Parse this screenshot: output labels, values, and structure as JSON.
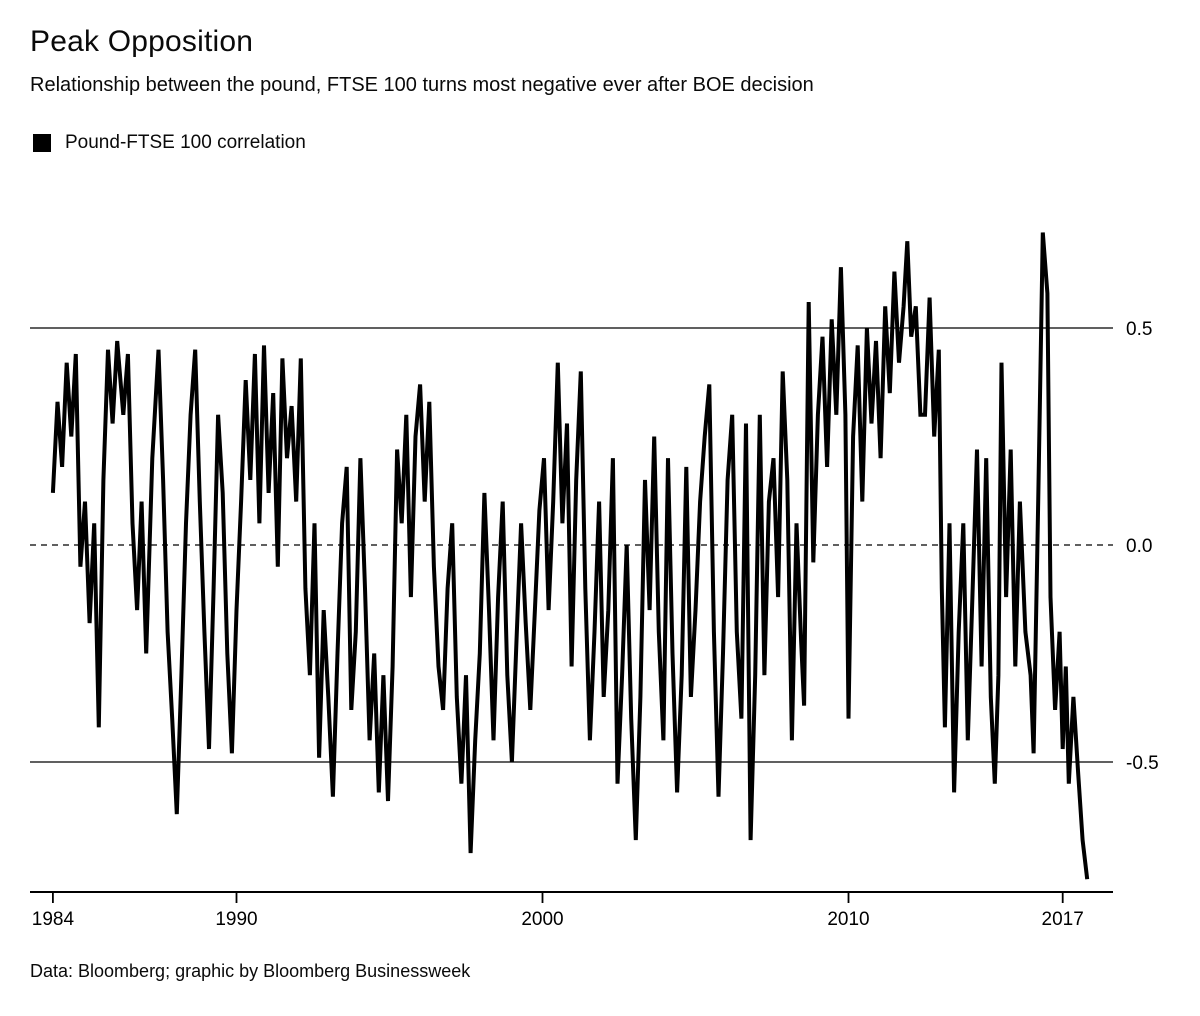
{
  "header": {
    "title": "Peak Opposition",
    "subtitle": "Relationship between the pound, FTSE 100 turns most negative ever after BOE decision"
  },
  "legend": {
    "items": [
      {
        "label": "Pound-FTSE 100 correlation",
        "swatch_color": "#000000"
      }
    ]
  },
  "footer": {
    "source": "Data: Bloomberg; graphic by Bloomberg Businessweek"
  },
  "chart_data": {
    "type": "line",
    "title": "Peak Opposition",
    "subtitle": "Relationship between the pound, FTSE 100 turns most negative ever after BOE decision",
    "xlabel": "",
    "ylabel": "",
    "xlim": [
      1983.3,
      2018.6
    ],
    "ylim": [
      -0.85,
      0.8
    ],
    "grid": "horizontal-only",
    "legend_position": "top-left",
    "line_color": "#000000",
    "axis_color": "#000000",
    "x_ticks": [
      {
        "label": "1984",
        "year": 1984
      },
      {
        "label": "1990",
        "year": 1990
      },
      {
        "label": "2000",
        "year": 2000
      },
      {
        "label": "2010",
        "year": 2010
      },
      {
        "label": "2017",
        "year": 2017
      }
    ],
    "y_ticks": [
      {
        "label": "0.5",
        "value": 0.5,
        "grid_style": "solid"
      },
      {
        "label": "0.0",
        "value": 0.0,
        "grid_style": "dashed"
      },
      {
        "label": "-0.5",
        "value": -0.5,
        "grid_style": "solid"
      }
    ],
    "series": [
      {
        "name": "Pound-FTSE 100 correlation",
        "color": "#000000",
        "points": [
          [
            1984.0,
            0.12
          ],
          [
            1984.15,
            0.33
          ],
          [
            1984.3,
            0.18
          ],
          [
            1984.45,
            0.42
          ],
          [
            1984.6,
            0.25
          ],
          [
            1984.75,
            0.44
          ],
          [
            1984.9,
            -0.05
          ],
          [
            1985.05,
            0.1
          ],
          [
            1985.2,
            -0.18
          ],
          [
            1985.35,
            0.05
          ],
          [
            1985.5,
            -0.42
          ],
          [
            1985.65,
            0.15
          ],
          [
            1985.8,
            0.45
          ],
          [
            1985.95,
            0.28
          ],
          [
            1986.1,
            0.47
          ],
          [
            1986.3,
            0.3
          ],
          [
            1986.45,
            0.44
          ],
          [
            1986.6,
            0.05
          ],
          [
            1986.75,
            -0.15
          ],
          [
            1986.9,
            0.1
          ],
          [
            1987.05,
            -0.25
          ],
          [
            1987.25,
            0.2
          ],
          [
            1987.45,
            0.45
          ],
          [
            1987.6,
            0.15
          ],
          [
            1987.75,
            -0.2
          ],
          [
            1987.9,
            -0.4
          ],
          [
            1988.05,
            -0.62
          ],
          [
            1988.2,
            -0.3
          ],
          [
            1988.35,
            0.05
          ],
          [
            1988.5,
            0.3
          ],
          [
            1988.65,
            0.45
          ],
          [
            1988.8,
            0.1
          ],
          [
            1988.95,
            -0.2
          ],
          [
            1989.1,
            -0.47
          ],
          [
            1989.25,
            -0.1
          ],
          [
            1989.4,
            0.3
          ],
          [
            1989.55,
            0.12
          ],
          [
            1989.7,
            -0.25
          ],
          [
            1989.85,
            -0.48
          ],
          [
            1990.0,
            -0.15
          ],
          [
            1990.15,
            0.1
          ],
          [
            1990.3,
            0.38
          ],
          [
            1990.45,
            0.15
          ],
          [
            1990.6,
            0.44
          ],
          [
            1990.75,
            0.05
          ],
          [
            1990.9,
            0.46
          ],
          [
            1991.05,
            0.12
          ],
          [
            1991.2,
            0.35
          ],
          [
            1991.35,
            -0.05
          ],
          [
            1991.5,
            0.43
          ],
          [
            1991.65,
            0.2
          ],
          [
            1991.8,
            0.32
          ],
          [
            1991.95,
            0.1
          ],
          [
            1992.1,
            0.43
          ],
          [
            1992.25,
            -0.1
          ],
          [
            1992.4,
            -0.3
          ],
          [
            1992.55,
            0.05
          ],
          [
            1992.7,
            -0.49
          ],
          [
            1992.85,
            -0.15
          ],
          [
            1993.0,
            -0.35
          ],
          [
            1993.15,
            -0.58
          ],
          [
            1993.3,
            -0.25
          ],
          [
            1993.45,
            0.05
          ],
          [
            1993.6,
            0.18
          ],
          [
            1993.75,
            -0.38
          ],
          [
            1993.9,
            -0.2
          ],
          [
            1994.05,
            0.2
          ],
          [
            1994.2,
            -0.1
          ],
          [
            1994.35,
            -0.45
          ],
          [
            1994.5,
            -0.25
          ],
          [
            1994.65,
            -0.57
          ],
          [
            1994.8,
            -0.3
          ],
          [
            1994.95,
            -0.59
          ],
          [
            1995.1,
            -0.28
          ],
          [
            1995.25,
            0.22
          ],
          [
            1995.4,
            0.05
          ],
          [
            1995.55,
            0.3
          ],
          [
            1995.7,
            -0.12
          ],
          [
            1995.85,
            0.25
          ],
          [
            1996.0,
            0.37
          ],
          [
            1996.15,
            0.1
          ],
          [
            1996.3,
            0.33
          ],
          [
            1996.45,
            -0.05
          ],
          [
            1996.6,
            -0.28
          ],
          [
            1996.75,
            -0.38
          ],
          [
            1996.9,
            -0.1
          ],
          [
            1997.05,
            0.05
          ],
          [
            1997.2,
            -0.35
          ],
          [
            1997.35,
            -0.55
          ],
          [
            1997.5,
            -0.3
          ],
          [
            1997.65,
            -0.71
          ],
          [
            1997.8,
            -0.45
          ],
          [
            1997.95,
            -0.25
          ],
          [
            1998.1,
            0.12
          ],
          [
            1998.25,
            -0.15
          ],
          [
            1998.4,
            -0.45
          ],
          [
            1998.55,
            -0.12
          ],
          [
            1998.7,
            0.1
          ],
          [
            1998.85,
            -0.3
          ],
          [
            1999.0,
            -0.5
          ],
          [
            1999.15,
            -0.22
          ],
          [
            1999.3,
            0.05
          ],
          [
            1999.45,
            -0.18
          ],
          [
            1999.6,
            -0.38
          ],
          [
            1999.75,
            -0.15
          ],
          [
            1999.9,
            0.08
          ],
          [
            2000.05,
            0.2
          ],
          [
            2000.2,
            -0.15
          ],
          [
            2000.35,
            0.1
          ],
          [
            2000.5,
            0.42
          ],
          [
            2000.65,
            0.05
          ],
          [
            2000.8,
            0.28
          ],
          [
            2000.95,
            -0.28
          ],
          [
            2001.1,
            0.15
          ],
          [
            2001.25,
            0.4
          ],
          [
            2001.4,
            -0.1
          ],
          [
            2001.55,
            -0.45
          ],
          [
            2001.7,
            -0.2
          ],
          [
            2001.85,
            0.1
          ],
          [
            2002.0,
            -0.35
          ],
          [
            2002.15,
            -0.15
          ],
          [
            2002.3,
            0.2
          ],
          [
            2002.45,
            -0.55
          ],
          [
            2002.6,
            -0.3
          ],
          [
            2002.75,
            0.0
          ],
          [
            2002.9,
            -0.4
          ],
          [
            2003.05,
            -0.68
          ],
          [
            2003.2,
            -0.35
          ],
          [
            2003.35,
            0.15
          ],
          [
            2003.5,
            -0.15
          ],
          [
            2003.65,
            0.25
          ],
          [
            2003.8,
            -0.2
          ],
          [
            2003.95,
            -0.45
          ],
          [
            2004.1,
            0.2
          ],
          [
            2004.25,
            -0.25
          ],
          [
            2004.4,
            -0.57
          ],
          [
            2004.55,
            -0.3
          ],
          [
            2004.7,
            0.18
          ],
          [
            2004.85,
            -0.35
          ],
          [
            2005.0,
            -0.15
          ],
          [
            2005.15,
            0.1
          ],
          [
            2005.3,
            0.25
          ],
          [
            2005.45,
            0.37
          ],
          [
            2005.6,
            -0.2
          ],
          [
            2005.75,
            -0.58
          ],
          [
            2005.9,
            -0.25
          ],
          [
            2006.05,
            0.15
          ],
          [
            2006.2,
            0.3
          ],
          [
            2006.35,
            -0.2
          ],
          [
            2006.5,
            -0.4
          ],
          [
            2006.65,
            0.28
          ],
          [
            2006.8,
            -0.68
          ],
          [
            2006.95,
            -0.3
          ],
          [
            2007.1,
            0.3
          ],
          [
            2007.25,
            -0.3
          ],
          [
            2007.4,
            0.1
          ],
          [
            2007.55,
            0.2
          ],
          [
            2007.7,
            -0.12
          ],
          [
            2007.85,
            0.4
          ],
          [
            2008.0,
            0.15
          ],
          [
            2008.15,
            -0.45
          ],
          [
            2008.3,
            0.05
          ],
          [
            2008.45,
            -0.22
          ],
          [
            2008.55,
            -0.37
          ],
          [
            2008.7,
            0.56
          ],
          [
            2008.85,
            -0.04
          ],
          [
            2009.0,
            0.3
          ],
          [
            2009.15,
            0.48
          ],
          [
            2009.3,
            0.18
          ],
          [
            2009.45,
            0.52
          ],
          [
            2009.6,
            0.3
          ],
          [
            2009.75,
            0.64
          ],
          [
            2009.9,
            0.3
          ],
          [
            2010.0,
            -0.4
          ],
          [
            2010.15,
            0.25
          ],
          [
            2010.3,
            0.46
          ],
          [
            2010.45,
            0.1
          ],
          [
            2010.6,
            0.5
          ],
          [
            2010.75,
            0.28
          ],
          [
            2010.9,
            0.47
          ],
          [
            2011.05,
            0.2
          ],
          [
            2011.2,
            0.55
          ],
          [
            2011.35,
            0.35
          ],
          [
            2011.5,
            0.63
          ],
          [
            2011.65,
            0.42
          ],
          [
            2011.8,
            0.55
          ],
          [
            2011.92,
            0.7
          ],
          [
            2012.05,
            0.48
          ],
          [
            2012.2,
            0.55
          ],
          [
            2012.35,
            0.3
          ],
          [
            2012.5,
            0.3
          ],
          [
            2012.65,
            0.57
          ],
          [
            2012.8,
            0.25
          ],
          [
            2012.95,
            0.45
          ],
          [
            2013.05,
            -0.1
          ],
          [
            2013.15,
            -0.42
          ],
          [
            2013.3,
            0.05
          ],
          [
            2013.45,
            -0.57
          ],
          [
            2013.6,
            -0.2
          ],
          [
            2013.75,
            0.05
          ],
          [
            2013.9,
            -0.45
          ],
          [
            2014.05,
            -0.12
          ],
          [
            2014.2,
            0.22
          ],
          [
            2014.35,
            -0.28
          ],
          [
            2014.5,
            0.2
          ],
          [
            2014.65,
            -0.35
          ],
          [
            2014.78,
            -0.55
          ],
          [
            2014.9,
            -0.3
          ],
          [
            2015.0,
            0.42
          ],
          [
            2015.15,
            -0.12
          ],
          [
            2015.3,
            0.22
          ],
          [
            2015.45,
            -0.28
          ],
          [
            2015.6,
            0.1
          ],
          [
            2015.78,
            -0.2
          ],
          [
            2015.95,
            -0.3
          ],
          [
            2016.05,
            -0.48
          ],
          [
            2016.2,
            0.1
          ],
          [
            2016.35,
            0.72
          ],
          [
            2016.5,
            0.58
          ],
          [
            2016.6,
            -0.12
          ],
          [
            2016.75,
            -0.38
          ],
          [
            2016.9,
            -0.2
          ],
          [
            2017.0,
            -0.47
          ],
          [
            2017.1,
            -0.28
          ],
          [
            2017.2,
            -0.55
          ],
          [
            2017.35,
            -0.35
          ],
          [
            2017.5,
            -0.52
          ],
          [
            2017.65,
            -0.68
          ],
          [
            2017.8,
            -0.77
          ]
        ]
      }
    ],
    "source": "Data: Bloomberg; graphic by Bloomberg Businessweek"
  }
}
